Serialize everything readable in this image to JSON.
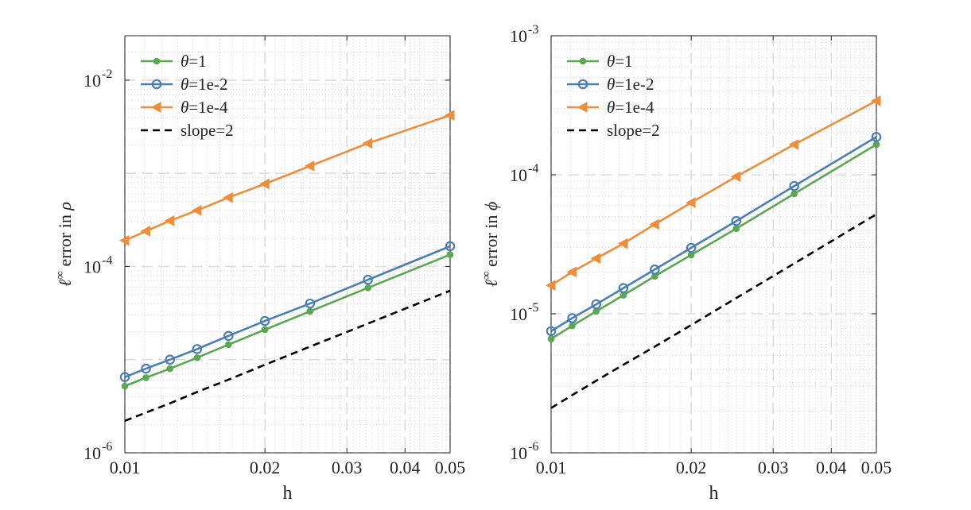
{
  "colors": {
    "theta_1": "#5aa84f",
    "theta_1e_2": "#4a7fb5",
    "theta_1e_4": "#ee8d3a",
    "slope": "#000000",
    "grid_major": "#dddddd",
    "grid_minor": "#d0d0d0"
  },
  "chart_data": [
    {
      "type": "line",
      "xscale": "log",
      "yscale": "log",
      "xlabel": "h",
      "ylabel_prefix": "ℓ",
      "ylabel_sup": "∞",
      "ylabel_text": " error in ",
      "ylabel_var": "ρ",
      "xlim": [
        0.01,
        0.05
      ],
      "ylim": [
        1e-06,
        0.03
      ],
      "xticks": [
        {
          "value": 0.01,
          "label": "0.01"
        },
        {
          "value": 0.02,
          "label": "0.02"
        },
        {
          "value": 0.03,
          "label": "0.03"
        },
        {
          "value": 0.04,
          "label": "0.04"
        },
        {
          "value": 0.05,
          "label": "0.05"
        }
      ],
      "yticks": [
        {
          "value": 1e-06,
          "base": "10",
          "exp": "-6"
        },
        {
          "value": 0.0001,
          "base": "10",
          "exp": "-4"
        },
        {
          "value": 0.01,
          "base": "10",
          "exp": "-2"
        }
      ],
      "legend_position": "top-left",
      "x": [
        0.01,
        0.0111,
        0.0125,
        0.0143,
        0.0167,
        0.02,
        0.025,
        0.0333,
        0.05
      ],
      "series": [
        {
          "name": "θ=1",
          "legend_var": "θ",
          "legend_rest": "=1",
          "color_key": "theta_1",
          "marker": "dot",
          "dash": false,
          "values": [
            5.2e-06,
            6.4e-06,
            8e-06,
            1.05e-05,
            1.45e-05,
            2.1e-05,
            3.3e-05,
            5.9e-05,
            0.000134
          ]
        },
        {
          "name": "θ=1e-2",
          "legend_var": "θ",
          "legend_rest": "=1e-2",
          "color_key": "theta_1e_2",
          "marker": "circle",
          "dash": false,
          "values": [
            6.5e-06,
            8e-06,
            1e-05,
            1.3e-05,
            1.8e-05,
            2.6e-05,
            4e-05,
            7.2e-05,
            0.000165
          ]
        },
        {
          "name": "θ=1e-4",
          "legend_var": "θ",
          "legend_rest": "=1e-4",
          "color_key": "theta_1e_4",
          "marker": "triangle-left",
          "dash": false,
          "values": [
            0.00019,
            0.00024,
            0.00031,
            0.0004,
            0.00055,
            0.00077,
            0.0012,
            0.0021,
            0.0042
          ]
        },
        {
          "name": "slope=2",
          "legend_var": "",
          "legend_rest": "slope=2",
          "color_key": "slope",
          "marker": "none",
          "dash": true,
          "values": [
            2.2e-06,
            2.7e-06,
            3.4e-06,
            4.5e-06,
            6.1e-06,
            8.8e-06,
            1.38e-05,
            2.44e-05,
            5.5e-05
          ]
        }
      ]
    },
    {
      "type": "line",
      "xscale": "log",
      "yscale": "log",
      "xlabel": "h",
      "ylabel_prefix": "ℓ",
      "ylabel_sup": "∞",
      "ylabel_text": " error in ",
      "ylabel_var": "ϕ",
      "xlim": [
        0.01,
        0.05
      ],
      "ylim": [
        1e-06,
        0.001
      ],
      "xticks": [
        {
          "value": 0.01,
          "label": "0.01"
        },
        {
          "value": 0.02,
          "label": "0.02"
        },
        {
          "value": 0.03,
          "label": "0.03"
        },
        {
          "value": 0.04,
          "label": "0.04"
        },
        {
          "value": 0.05,
          "label": "0.05"
        }
      ],
      "yticks": [
        {
          "value": 1e-06,
          "base": "10",
          "exp": "-6"
        },
        {
          "value": 1e-05,
          "base": "10",
          "exp": "-5"
        },
        {
          "value": 0.0001,
          "base": "10",
          "exp": "-4"
        },
        {
          "value": 0.001,
          "base": "10",
          "exp": "-3"
        }
      ],
      "legend_position": "top-left",
      "x": [
        0.01,
        0.0111,
        0.0125,
        0.0143,
        0.0167,
        0.02,
        0.025,
        0.0333,
        0.05
      ],
      "series": [
        {
          "name": "θ=1",
          "legend_var": "θ",
          "legend_rest": "=1",
          "color_key": "theta_1",
          "marker": "dot",
          "dash": false,
          "values": [
            6.6e-06,
            8.2e-06,
            1.04e-05,
            1.36e-05,
            1.86e-05,
            2.65e-05,
            4.1e-05,
            7.3e-05,
            0.000165
          ]
        },
        {
          "name": "θ=1e-2",
          "legend_var": "θ",
          "legend_rest": "=1e-2",
          "color_key": "theta_1e_2",
          "marker": "circle",
          "dash": false,
          "values": [
            7.5e-06,
            9.3e-06,
            1.17e-05,
            1.53e-05,
            2.08e-05,
            2.98e-05,
            4.65e-05,
            8.3e-05,
            0.000187
          ]
        },
        {
          "name": "θ=1e-4",
          "legend_var": "θ",
          "legend_rest": "=1e-4",
          "color_key": "theta_1e_4",
          "marker": "triangle-left",
          "dash": false,
          "values": [
            1.6e-05,
            2e-05,
            2.5e-05,
            3.2e-05,
            4.4e-05,
            6.3e-05,
            9.7e-05,
            0.000165,
            0.00034
          ]
        },
        {
          "name": "slope=2",
          "legend_var": "",
          "legend_rest": "slope=2",
          "color_key": "slope",
          "marker": "none",
          "dash": true,
          "values": [
            2.1e-06,
            2.6e-06,
            3.3e-06,
            4.3e-06,
            5.8e-06,
            8.3e-06,
            1.3e-05,
            2.3e-05,
            5.2e-05
          ]
        }
      ]
    }
  ]
}
